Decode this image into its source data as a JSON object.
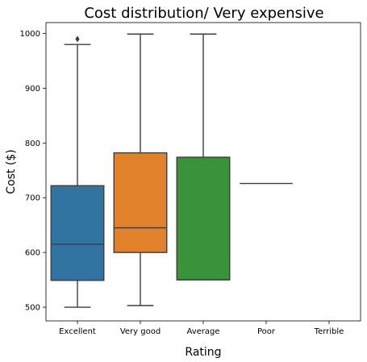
{
  "chart_data": {
    "type": "box",
    "title": "Cost distribution/ Very expensive",
    "xlabel": "Rating",
    "ylabel": "Cost ($)",
    "categories": [
      "Excellent",
      "Very good",
      "Average",
      "Poor",
      "Terrible"
    ],
    "ylim": [
      475,
      1020
    ],
    "yticks": [
      500,
      600,
      700,
      800,
      900,
      1000
    ],
    "grid": false,
    "boxes": [
      {
        "category": "Excellent",
        "whisker_low": 500,
        "q1": 549,
        "median": 615,
        "q3": 722,
        "whisker_high": 980,
        "outliers": [
          990
        ],
        "color": "#3274a1"
      },
      {
        "category": "Very good",
        "whisker_low": 503,
        "q1": 600,
        "median": 645,
        "q3": 782,
        "whisker_high": 999,
        "outliers": [],
        "color": "#e1812c"
      },
      {
        "category": "Average",
        "whisker_low": 550,
        "q1": 550,
        "median": 550,
        "q3": 774,
        "whisker_high": 999,
        "outliers": [],
        "color": "#3a923a"
      },
      {
        "category": "Poor",
        "whisker_low": 726,
        "q1": 726,
        "median": 726,
        "q3": 726,
        "whisker_high": 726,
        "outliers": [],
        "color": "#c03d3e"
      },
      {
        "category": "Terrible",
        "whisker_low": null,
        "q1": null,
        "median": null,
        "q3": null,
        "whisker_high": null,
        "outliers": [],
        "color": "#9372b2"
      }
    ]
  }
}
